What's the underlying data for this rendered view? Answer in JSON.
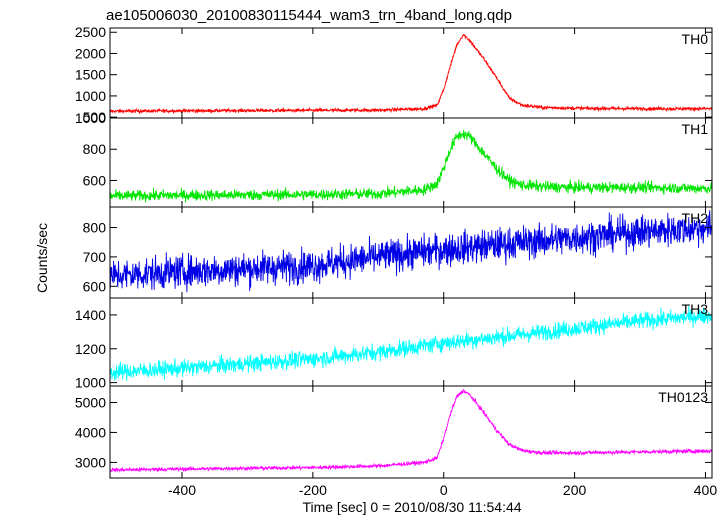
{
  "chart_data": {
    "type": "line",
    "title": "ae105006030_20100830115444_wam3_trn_4band_long.qdp",
    "xlabel": "Time [sec] 0 = 2010/08/30 11:54:44",
    "ylabel": "Counts/sec",
    "xlim": [
      -510,
      410
    ],
    "x_ticks": [
      -400,
      -200,
      0,
      200,
      400
    ],
    "grid": false,
    "panels": [
      {
        "name": "TH0",
        "color": "#ff0000",
        "ylim": [
          480,
          2600
        ],
        "y_ticks": [
          500,
          1000,
          1500,
          2000,
          2500
        ],
        "x": [
          -510,
          -400,
          -200,
          -100,
          -30,
          -10,
          0,
          10,
          20,
          30,
          40,
          60,
          80,
          100,
          120,
          150,
          200,
          300,
          400
        ],
        "values": [
          640,
          650,
          660,
          665,
          700,
          780,
          1150,
          1700,
          2200,
          2450,
          2300,
          1900,
          1450,
          950,
          780,
          730,
          710,
          700,
          700
        ],
        "noise": 28
      },
      {
        "name": "TH1",
        "color": "#00e600",
        "ylim": [
          430,
          1000
        ],
        "y_ticks": [
          600,
          800,
          1000
        ],
        "x": [
          -510,
          -400,
          -200,
          -100,
          -30,
          -10,
          0,
          10,
          20,
          30,
          40,
          60,
          80,
          100,
          120,
          150,
          200,
          300,
          400
        ],
        "values": [
          500,
          505,
          510,
          515,
          540,
          580,
          680,
          800,
          880,
          900,
          880,
          780,
          680,
          600,
          570,
          560,
          555,
          555,
          550
        ],
        "noise": 25
      },
      {
        "name": "TH2",
        "color": "#0000e6",
        "ylim": [
          560,
          870
        ],
        "y_ticks": [
          600,
          700,
          800
        ],
        "x": [
          -510,
          -400,
          -200,
          -100,
          0,
          100,
          200,
          300,
          400
        ],
        "values": [
          635,
          650,
          670,
          700,
          725,
          745,
          765,
          785,
          800
        ],
        "noise": 40
      },
      {
        "name": "TH3",
        "color": "#00ffff",
        "ylim": [
          980,
          1500
        ],
        "y_ticks": [
          1000,
          1200,
          1400
        ],
        "x": [
          -510,
          -400,
          -200,
          -100,
          0,
          100,
          200,
          300,
          400
        ],
        "values": [
          1060,
          1085,
          1140,
          1180,
          1235,
          1275,
          1320,
          1365,
          1395
        ],
        "noise": 35
      },
      {
        "name": "TH0123",
        "color": "#ff00ff",
        "ylim": [
          2480,
          5550
        ],
        "y_ticks": [
          3000,
          4000,
          5000
        ],
        "x": [
          -510,
          -400,
          -200,
          -100,
          -30,
          -10,
          0,
          10,
          20,
          30,
          40,
          60,
          80,
          100,
          120,
          150,
          200,
          300,
          400
        ],
        "values": [
          2750,
          2780,
          2830,
          2880,
          3000,
          3150,
          3800,
          4600,
          5200,
          5400,
          5250,
          4700,
          4100,
          3600,
          3400,
          3320,
          3320,
          3350,
          3380
        ],
        "noise": 45
      }
    ]
  }
}
